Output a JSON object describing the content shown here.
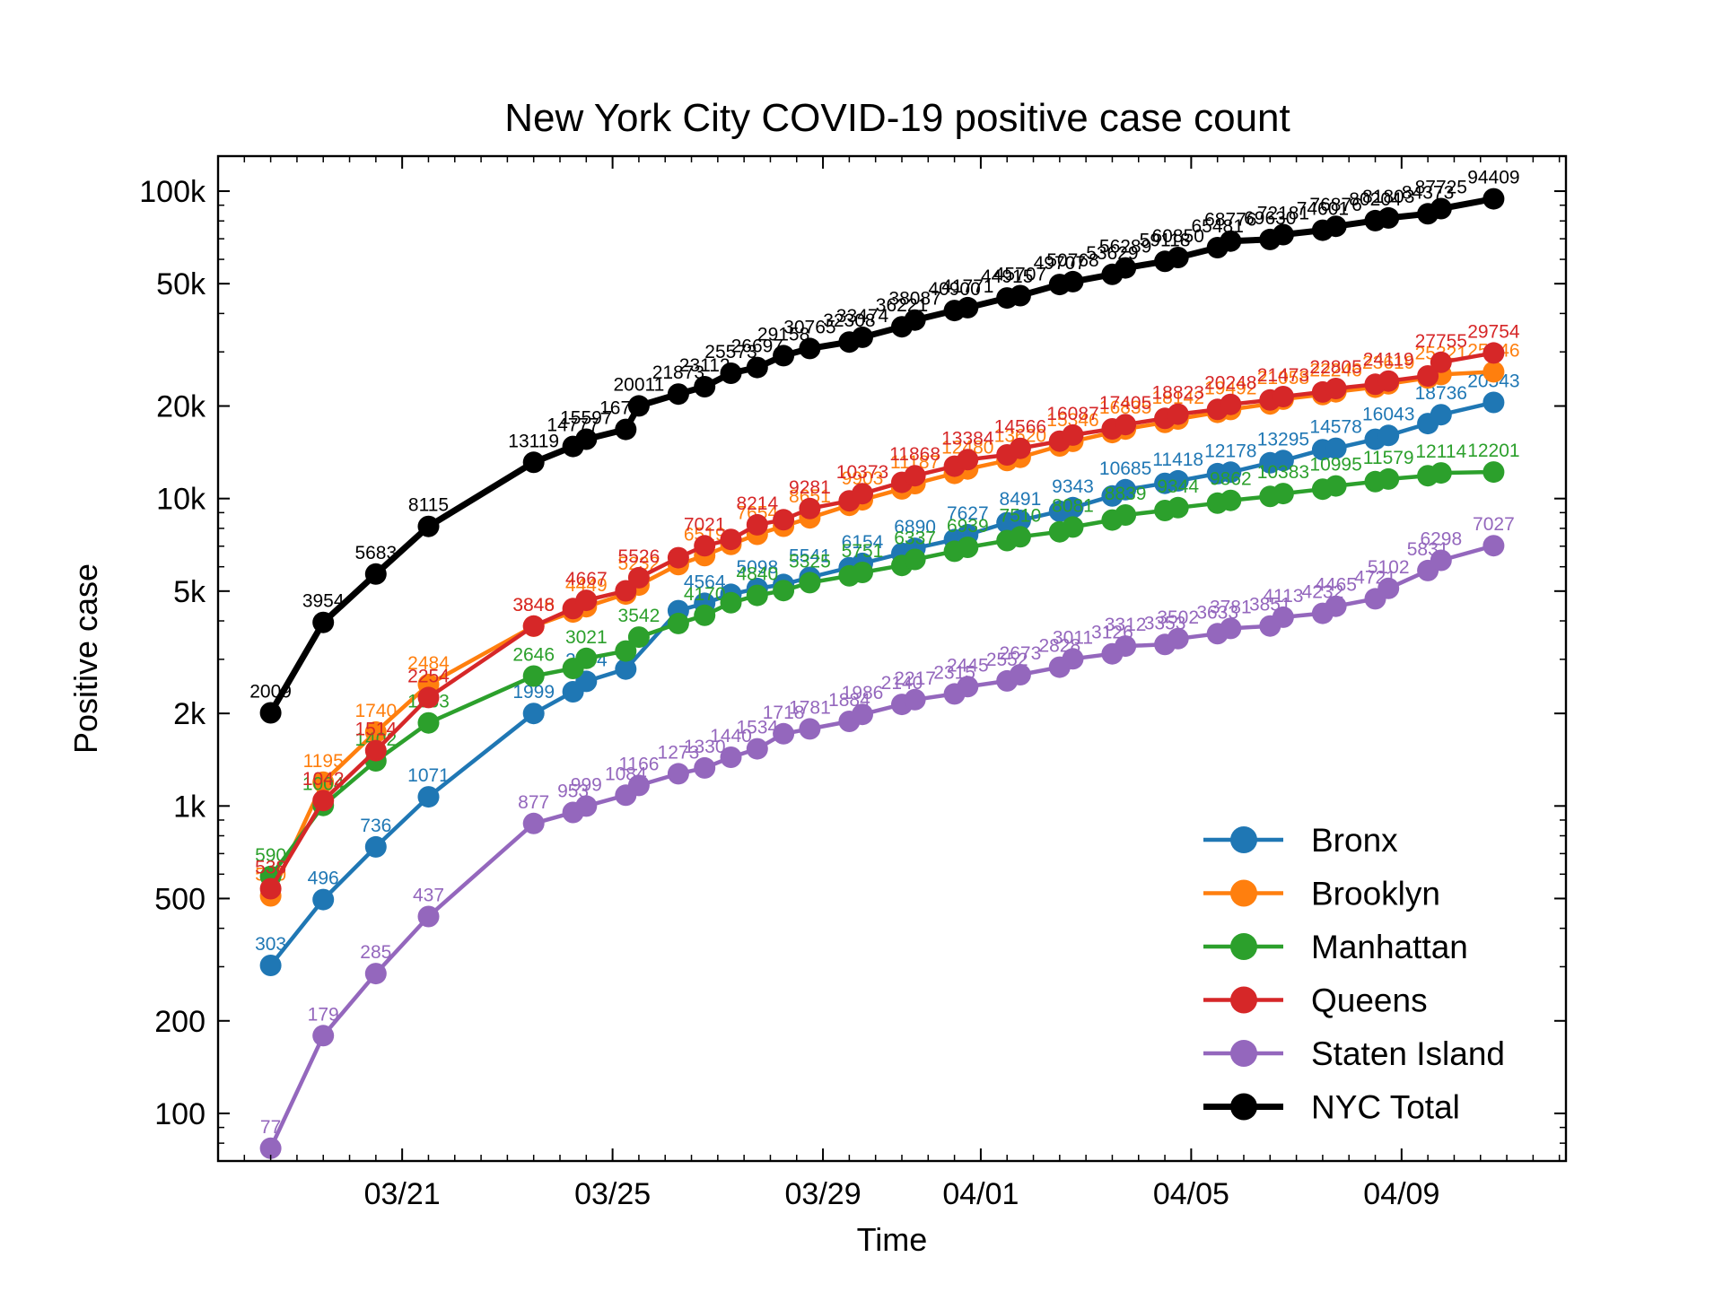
{
  "chart_data": {
    "type": "line",
    "title": "New York City COVID-19 positive case count",
    "xlabel": "Time",
    "ylabel": "Positive case",
    "y_scale": "log",
    "ylim": [
      70,
      130000
    ],
    "xlim": [
      "03/17 12:00",
      "04/12 03:00"
    ],
    "x_ticks": [
      "03/21",
      "03/25",
      "03/29",
      "04/01",
      "04/05",
      "04/09"
    ],
    "y_ticks": [
      {
        "value": 100,
        "label": "100"
      },
      {
        "value": 200,
        "label": "200"
      },
      {
        "value": 500,
        "label": "500"
      },
      {
        "value": 1000,
        "label": "1k"
      },
      {
        "value": 2000,
        "label": "2k"
      },
      {
        "value": 5000,
        "label": "5k"
      },
      {
        "value": 10000,
        "label": "10k"
      },
      {
        "value": 20000,
        "label": "20k"
      },
      {
        "value": 50000,
        "label": "50k"
      },
      {
        "value": 100000,
        "label": "100k"
      }
    ],
    "grid": false,
    "legend_position": "bottom-right",
    "dates": [
      "03/18",
      "03/19",
      "03/20",
      "03/21",
      "03/23",
      "03/24",
      "03/24",
      "03/25",
      "03/25",
      "03/26",
      "03/27",
      "03/27",
      "03/28",
      "03/28",
      "03/29",
      "03/30",
      "03/30",
      "03/31",
      "03/31",
      "04/01",
      "04/01",
      "04/02",
      "04/02",
      "04/03",
      "04/03",
      "04/04",
      "04/04",
      "04/05",
      "04/05",
      "04/06",
      "04/06",
      "04/07",
      "04/07",
      "04/08",
      "04/08",
      "04/09",
      "04/09",
      "04/10",
      "04/10",
      "04/11"
    ],
    "times": [
      "03/18 12:00",
      "03/19 12:00",
      "03/20 12:00",
      "03/21 12:00",
      "03/23 12:00",
      "03/24 06:00",
      "03/24 12:00",
      "03/25 06:00",
      "03/25 12:00",
      "03/26 06:00",
      "03/26 18:00",
      "03/27 06:00",
      "03/27 18:00",
      "03/28 06:00",
      "03/28 18:00",
      "03/29 12:00",
      "03/29 18:00",
      "03/30 12:00",
      "03/30 18:00",
      "03/31 12:00",
      "03/31 18:00",
      "04/01 12:00",
      "04/01 18:00",
      "04/02 12:00",
      "04/02 18:00",
      "04/03 12:00",
      "04/03 18:00",
      "04/04 12:00",
      "04/04 18:00",
      "04/05 12:00",
      "04/05 18:00",
      "04/06 12:00",
      "04/06 18:00",
      "04/07 12:00",
      "04/07 18:00",
      "04/08 12:00",
      "04/08 18:00",
      "04/09 12:00",
      "04/09 18:00",
      "04/10 18:00"
    ],
    "series": [
      {
        "name": "Bronx",
        "color": "#1f77b4",
        "values": [
          303,
          496,
          736,
          1071,
          1999,
          2352,
          2544,
          2789,
          null,
          4320,
          4564,
          4880,
          5098,
          5255,
          5541,
          5958,
          6154,
          6630,
          6890,
          7356,
          7627,
          8347,
          8491,
          9096,
          9343,
          10193,
          10685,
          11205,
          11418,
          12053,
          12178,
          13069,
          13295,
          14421,
          14578,
          15588,
          16043,
          17530,
          18736,
          20543
        ]
      },
      {
        "name": "Brooklyn",
        "color": "#ff7f0e",
        "values": [
          510,
          1195,
          1740,
          2484,
          3846,
          4275,
          4449,
          4890,
          5232,
          6095,
          6519,
          7091,
          7654,
          8129,
          8651,
          9504,
          9903,
          10751,
          11187,
          12076,
          12480,
          13290,
          13620,
          14831,
          15346,
          16397,
          16835,
          17690,
          18142,
          19077,
          19492,
          20315,
          21058,
          21783,
          22246,
          23014,
          23619,
          24672,
          25321,
          25846
        ]
      },
      {
        "name": "Manhattan",
        "color": "#2ca02c",
        "values": [
          590,
          1004,
          1402,
          1863,
          2646,
          2801,
          3021,
          3192,
          3542,
          3923,
          4170,
          4582,
          4840,
          5021,
          5325,
          5607,
          5751,
          6061,
          6337,
          6739,
          6939,
          7298,
          7510,
          7796,
          8081,
          8514,
          8839,
          9140,
          9344,
          9658,
          9862,
          10162,
          10383,
          10732,
          10995,
          11352,
          11579,
          11863,
          12114,
          12201
        ]
      },
      {
        "name": "Queens",
        "color": "#d62728",
        "values": [
          538,
          1042,
          1514,
          2254,
          3848,
          4385,
          4667,
          5011,
          5526,
          6420,
          7021,
          7362,
          8214,
          8529,
          9281,
          9831,
          10373,
          11288,
          11868,
          12745,
          13384,
          13869,
          14566,
          15367,
          16087,
          16853,
          17405,
          18229,
          18823,
          19497,
          20248,
          20930,
          21473,
          22216,
          22805,
          23535,
          24119,
          25051,
          27755,
          29754
        ]
      },
      {
        "name": "Staten Island",
        "color": "#9467bd",
        "values": [
          77,
          179,
          285,
          437,
          877,
          953,
          999,
          1084,
          1166,
          1273,
          1330,
          1440,
          1534,
          1718,
          1781,
          1884,
          1986,
          2140,
          2217,
          2315,
          2445,
          2552,
          2673,
          2828,
          3011,
          3126,
          3312,
          3353,
          3502,
          3633,
          3781,
          3851,
          4113,
          4232,
          4465,
          4721,
          5102,
          5831,
          6298,
          7027
        ]
      },
      {
        "name": "NYC Total",
        "color": "#000000",
        "values": [
          2009,
          3954,
          5683,
          8115,
          13119,
          14777,
          15597,
          16787,
          20011,
          21873,
          23112,
          25573,
          26697,
          29158,
          30765,
          32308,
          33474,
          36221,
          38087,
          40900,
          41771,
          44915,
          45707,
          49707,
          50768,
          53629,
          56289,
          59118,
          60850,
          65481,
          68776,
          69630,
          72181,
          74601,
          76876,
          80204,
          81803,
          84373,
          87725,
          94409
        ]
      }
    ],
    "point_labels": {
      "Bronx": {
        "show": [
          0,
          1,
          2,
          3,
          4,
          6,
          8,
          10,
          12,
          14,
          16,
          18,
          20,
          22,
          24,
          26,
          28,
          30,
          32,
          34,
          36,
          38,
          39
        ],
        "text": {
          "39": "20543"
        }
      },
      "Brooklyn": {
        "show": [
          0,
          1,
          2,
          3,
          4,
          6,
          8,
          10,
          12,
          14,
          16,
          18,
          20,
          22,
          24,
          26,
          28,
          30,
          32,
          34,
          36,
          38,
          39
        ],
        "text": {
          "39": "25846"
        }
      },
      "Manhattan": {
        "show": [
          0,
          1,
          2,
          3,
          4,
          6,
          8,
          10,
          12,
          14,
          16,
          18,
          20,
          22,
          24,
          26,
          28,
          30,
          32,
          34,
          36,
          38,
          39
        ],
        "text": {
          "39": "12201"
        }
      },
      "Queens": {
        "show": [
          0,
          1,
          2,
          3,
          4,
          6,
          8,
          10,
          12,
          14,
          16,
          18,
          20,
          22,
          24,
          26,
          28,
          30,
          32,
          34,
          36,
          38,
          39
        ],
        "text": {
          "39": "29754"
        }
      },
      "Staten Island": {
        "show": [
          0,
          1,
          2,
          3,
          4,
          5,
          6,
          7,
          8,
          9,
          10,
          11,
          12,
          13,
          14,
          15,
          16,
          17,
          18,
          19,
          20,
          21,
          22,
          23,
          24,
          25,
          26,
          27,
          28,
          29,
          30,
          31,
          32,
          33,
          34,
          35,
          36,
          37,
          38,
          39
        ],
        "text": {
          "39": "7027"
        }
      },
      "NYC Total": {
        "show": [
          0,
          1,
          2,
          3,
          4,
          5,
          6,
          7,
          8,
          9,
          10,
          11,
          12,
          13,
          14,
          15,
          16,
          17,
          18,
          19,
          20,
          21,
          22,
          23,
          24,
          25,
          26,
          27,
          28,
          29,
          30,
          31,
          32,
          33,
          34,
          35,
          36,
          37,
          38,
          39
        ],
        "text": {
          "39": "94409"
        }
      }
    }
  }
}
